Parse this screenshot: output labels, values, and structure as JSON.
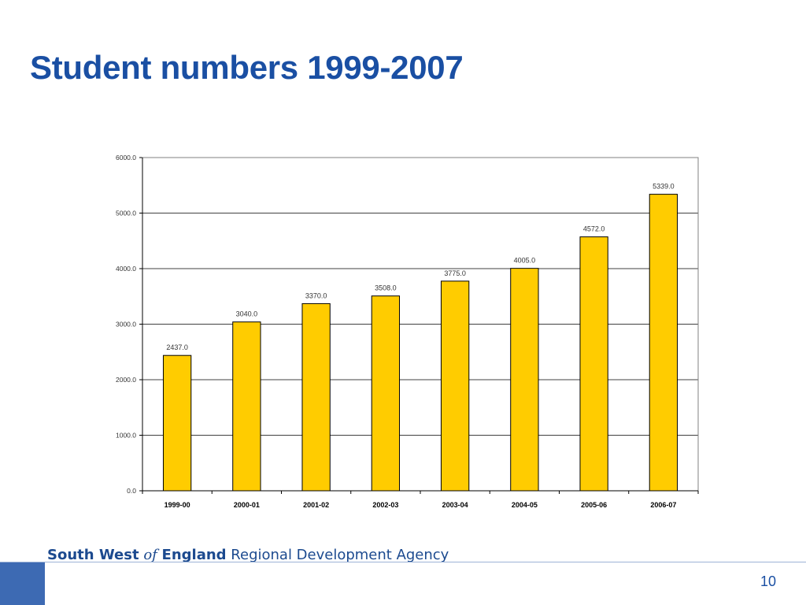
{
  "slide": {
    "title": "Student numbers 1999-2007",
    "page_number": "10"
  },
  "footer": {
    "org_part1": "South West",
    "org_of": "of",
    "org_part2": "England",
    "org_part3": "Regional Development Agency",
    "accent_color": "#3d6ab3"
  },
  "chart_data": {
    "type": "bar",
    "title": "",
    "xlabel": "",
    "ylabel": "",
    "categories": [
      "1999-00",
      "2000-01",
      "2001-02",
      "2002-03",
      "2003-04",
      "2004-05",
      "2005-06",
      "2006-07"
    ],
    "values": [
      2437.0,
      3040.0,
      3370.0,
      3508.0,
      3775.0,
      4005.0,
      4572.0,
      5339.0
    ],
    "data_labels": [
      "2437.0",
      "3040.0",
      "3370.0",
      "3508.0",
      "3775.0",
      "4005.0",
      "4572.0",
      "5339.0"
    ],
    "ylim": [
      0,
      6000
    ],
    "yticks": [
      0,
      1000,
      2000,
      3000,
      4000,
      5000,
      6000
    ],
    "ytick_labels": [
      "0.0",
      "1000.0",
      "2000.0",
      "3000.0",
      "4000.0",
      "5000.0",
      "6000.0"
    ],
    "grid": true,
    "legend": "none",
    "bar_color": "#ffcc00",
    "bar_edge_color": "#000000"
  }
}
